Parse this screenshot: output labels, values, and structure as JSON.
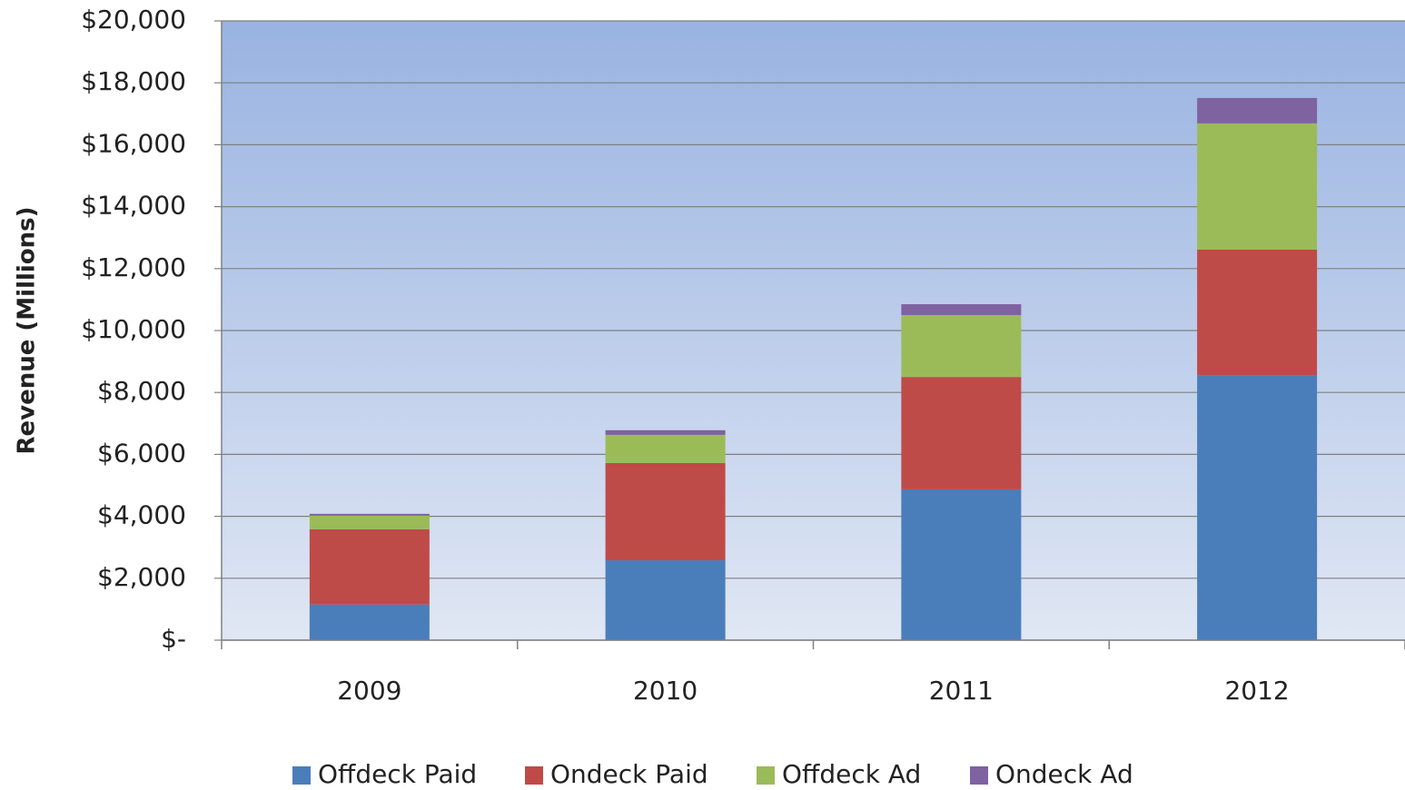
{
  "chart_data": {
    "type": "stacked_bar",
    "y_label": "Revenue (Millions)",
    "categories": [
      "2009",
      "2010",
      "2011",
      "2012"
    ],
    "series": [
      {
        "name": "Offdeck Paid",
        "color": "#4a7ebb",
        "values": [
          1150,
          2580,
          4870,
          8560
        ]
      },
      {
        "name": "Ondeck Paid",
        "color": "#be4b48",
        "values": [
          2430,
          3140,
          3630,
          4050
        ]
      },
      {
        "name": "Offdeck Ad",
        "color": "#9bbb59",
        "values": [
          440,
          910,
          2000,
          4080
        ]
      },
      {
        "name": "Ondeck Ad",
        "color": "#7f62a0",
        "values": [
          60,
          150,
          350,
          820
        ]
      }
    ],
    "ylim": [
      0,
      20000
    ],
    "yticks": [
      {
        "value": 0,
        "label": "$-"
      },
      {
        "value": 2000,
        "label": "$2,000"
      },
      {
        "value": 4000,
        "label": "$4,000"
      },
      {
        "value": 6000,
        "label": "$6,000"
      },
      {
        "value": 8000,
        "label": "$8,000"
      },
      {
        "value": 10000,
        "label": "$10,000"
      },
      {
        "value": 12000,
        "label": "$12,000"
      },
      {
        "value": 14000,
        "label": "$14,000"
      },
      {
        "value": 16000,
        "label": "$16,000"
      },
      {
        "value": 18000,
        "label": "$18,000"
      },
      {
        "value": 20000,
        "label": "$20,000"
      }
    ],
    "grid": true,
    "legend": "bottom"
  }
}
